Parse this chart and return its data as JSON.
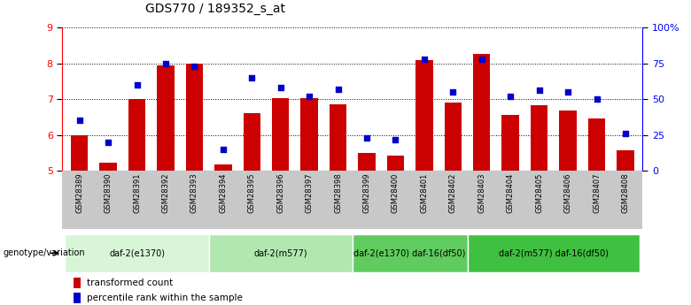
{
  "title": "GDS770 / 189352_s_at",
  "samples": [
    "GSM28389",
    "GSM28390",
    "GSM28391",
    "GSM28392",
    "GSM28393",
    "GSM28394",
    "GSM28395",
    "GSM28396",
    "GSM28397",
    "GSM28398",
    "GSM28399",
    "GSM28400",
    "GSM28401",
    "GSM28402",
    "GSM28403",
    "GSM28404",
    "GSM28405",
    "GSM28406",
    "GSM28407",
    "GSM28408"
  ],
  "bar_values": [
    5.98,
    5.22,
    7.0,
    7.95,
    7.98,
    5.18,
    6.62,
    7.02,
    7.02,
    6.85,
    5.5,
    5.42,
    8.08,
    6.9,
    8.25,
    6.55,
    6.82,
    6.68,
    6.45,
    5.58
  ],
  "dot_values": [
    35,
    20,
    60,
    75,
    73,
    15,
    65,
    58,
    52,
    57,
    23,
    22,
    78,
    55,
    78,
    52,
    56,
    55,
    50,
    26
  ],
  "ylim_left": [
    5,
    9
  ],
  "ylim_right": [
    0,
    100
  ],
  "yticks_left": [
    5,
    6,
    7,
    8,
    9
  ],
  "yticks_right": [
    0,
    25,
    50,
    75,
    100
  ],
  "ytick_labels_right": [
    "0",
    "25",
    "50",
    "75",
    "100%"
  ],
  "bar_color": "#cc0000",
  "dot_color": "#0000cc",
  "groups": [
    {
      "label": "daf-2(e1370)",
      "start": 0,
      "end": 4,
      "color": "#d8f5d8"
    },
    {
      "label": "daf-2(m577)",
      "start": 5,
      "end": 9,
      "color": "#b0e8b0"
    },
    {
      "label": "daf-2(e1370) daf-16(df50)",
      "start": 10,
      "end": 13,
      "color": "#60cc60"
    },
    {
      "label": "daf-2(m577) daf-16(df50)",
      "start": 14,
      "end": 19,
      "color": "#40c040"
    }
  ],
  "xlabel_genotype": "genotype/variation",
  "legend_bar_label": "transformed count",
  "legend_dot_label": "percentile rank within the sample",
  "gray_bg": "#c8c8c8",
  "plot_bg_color": "#ffffff"
}
